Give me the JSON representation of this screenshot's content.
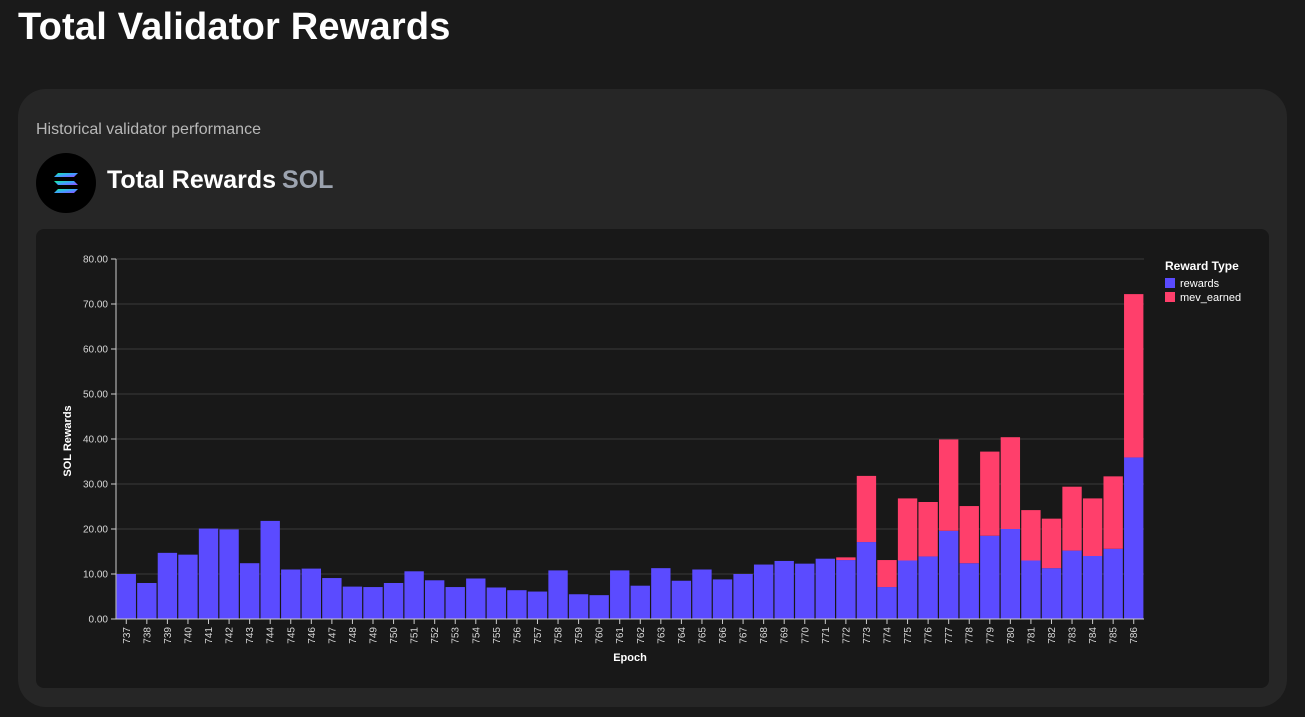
{
  "page": {
    "title": "Total Validator Rewards"
  },
  "card": {
    "subtitle": "Historical validator performance",
    "heading": "Total Rewards",
    "unit": "SOL",
    "logo_icon": "solana-logo-icon"
  },
  "colors": {
    "rewards": "#5b4bff",
    "mev_earned": "#ff3f6b",
    "background": "#1a1a1a",
    "card": "#262626",
    "panel": "#181818"
  },
  "chart_data": {
    "type": "bar",
    "stacked": true,
    "xlabel": "Epoch",
    "ylabel": "SOL Rewards",
    "ylim": [
      0,
      80
    ],
    "yticks": [
      "0.00",
      "10.00",
      "20.00",
      "30.00",
      "40.00",
      "50.00",
      "60.00",
      "70.00",
      "80.00"
    ],
    "grid": true,
    "legend": {
      "title": "Reward Type",
      "placement": "top-right"
    },
    "categories": [
      "737",
      "738",
      "739",
      "740",
      "741",
      "742",
      "743",
      "744",
      "745",
      "746",
      "747",
      "748",
      "749",
      "750",
      "751",
      "752",
      "753",
      "754",
      "755",
      "756",
      "757",
      "758",
      "759",
      "760",
      "761",
      "762",
      "763",
      "764",
      "765",
      "766",
      "767",
      "768",
      "769",
      "770",
      "771",
      "772",
      "773",
      "774",
      "775",
      "776",
      "777",
      "778",
      "779",
      "780",
      "781",
      "782",
      "783",
      "784",
      "785",
      "786"
    ],
    "series": [
      {
        "name": "rewards",
        "values": [
          10.0,
          8.0,
          14.7,
          14.3,
          20.1,
          19.9,
          12.4,
          21.8,
          11.0,
          11.2,
          9.1,
          7.2,
          7.1,
          8.0,
          10.6,
          8.6,
          7.1,
          9.0,
          7.0,
          6.4,
          6.1,
          10.8,
          5.5,
          5.3,
          10.8,
          7.4,
          11.3,
          8.5,
          11.0,
          8.8,
          10.0,
          12.1,
          12.9,
          12.3,
          13.4,
          13.1,
          17.1,
          7.1,
          13.0,
          13.9,
          19.6,
          12.4,
          18.5,
          20.0,
          13.0,
          11.3,
          15.2,
          14.0,
          15.6,
          35.9
        ]
      },
      {
        "name": "mev_earned",
        "values": [
          0,
          0,
          0,
          0,
          0,
          0,
          0,
          0,
          0,
          0,
          0,
          0,
          0,
          0,
          0,
          0,
          0,
          0,
          0,
          0,
          0,
          0,
          0,
          0,
          0,
          0,
          0,
          0,
          0,
          0,
          0,
          0,
          0,
          0,
          0,
          0.6,
          14.7,
          6.0,
          13.8,
          12.1,
          20.3,
          12.7,
          18.7,
          20.4,
          11.2,
          11.0,
          14.2,
          12.8,
          16.1,
          36.3
        ]
      }
    ]
  }
}
